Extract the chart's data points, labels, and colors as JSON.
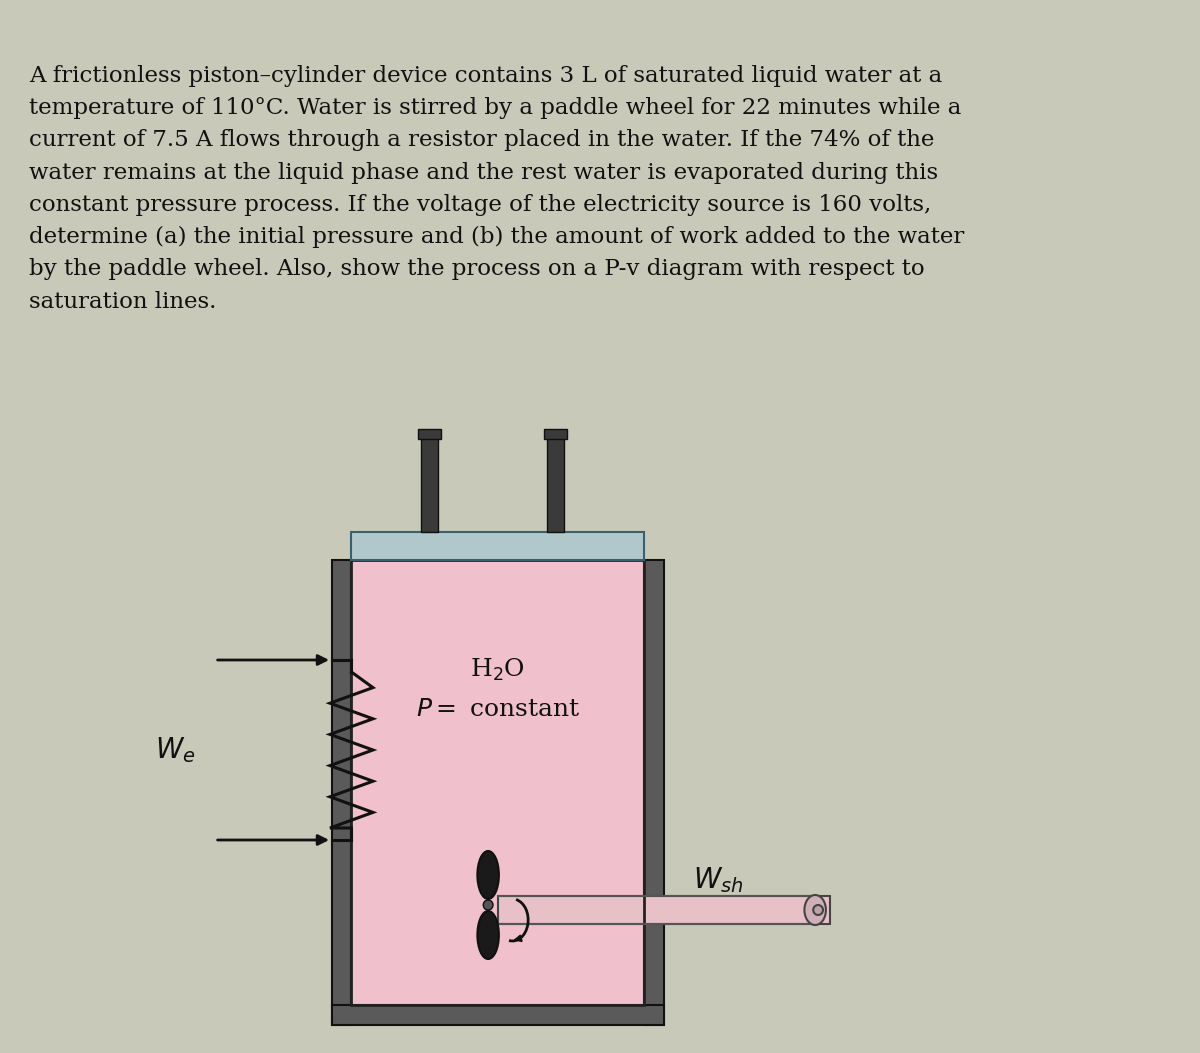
{
  "bg_color": "#c9c9b9",
  "text_paragraph": "A frictionless piston–cylinder device contains 3 L of saturated liquid water at a\ntemperature of 110°C. Water is stirred by a paddle wheel for 22 minutes while a\ncurrent of 7.5 A flows through a resistor placed in the water. If the 74% of the\nwater remains at the liquid phase and the rest water is evaporated during this\nconstant pressure process. If the voltage of the electricity source is 160 volts,\ndetermine (a) the initial pressure and (b) the amount of work added to the water\nby the paddle wheel. Also, show the process on a P-v diagram with respect to\nsaturation lines.",
  "text_fontsize": 16.5,
  "cylinder_color": "#f0c0cc",
  "piston_color": "#b0c8cc",
  "wall_color": "#5a5a5a",
  "wall_light": "#888888",
  "rod_color": "#3a3a3a"
}
